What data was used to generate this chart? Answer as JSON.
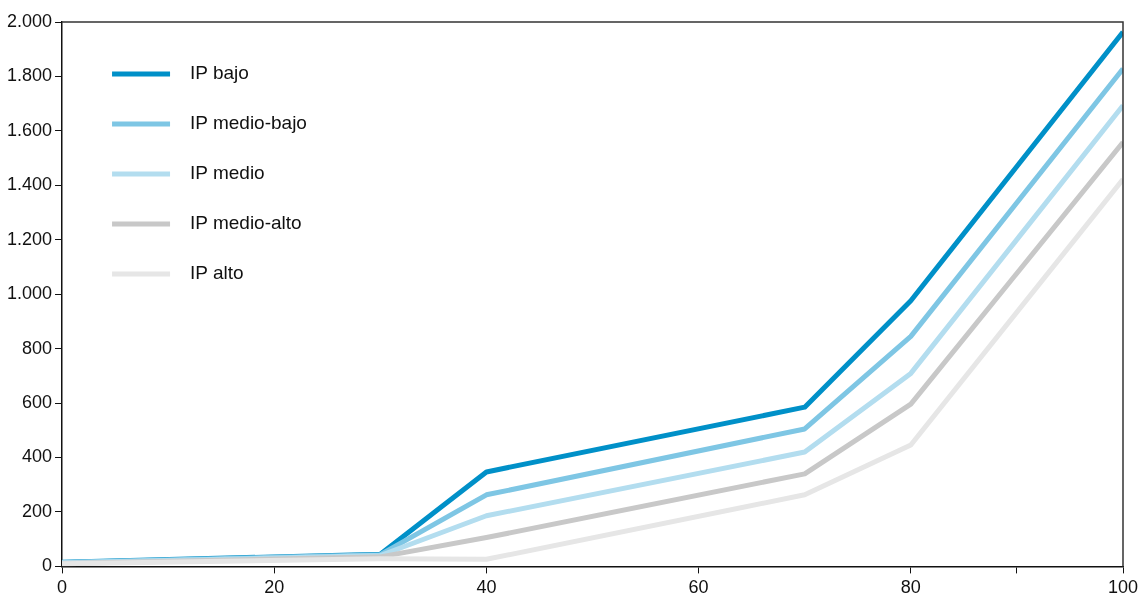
{
  "chart_data": {
    "type": "line",
    "x": [
      0,
      30,
      40,
      70,
      80,
      100
    ],
    "series": [
      {
        "name": "IP bajo",
        "color": "#0090c8",
        "values": [
          15,
          45,
          347,
          585,
          976,
          1963
        ]
      },
      {
        "name": "IP medio-bajo",
        "color": "#7ec6e4",
        "values": [
          14,
          43,
          263,
          505,
          845,
          1828
        ]
      },
      {
        "name": "IP medio",
        "color": "#b3ddef",
        "values": [
          13,
          40,
          186,
          420,
          709,
          1693
        ]
      },
      {
        "name": "IP medio-alto",
        "color": "#c8c8c8",
        "values": [
          11,
          35,
          106,
          340,
          596,
          1558
        ]
      },
      {
        "name": "IP alto",
        "color": "#e6e6e6",
        "values": [
          10,
          28,
          26,
          263,
          446,
          1422
        ]
      }
    ],
    "xlim": [
      0,
      100
    ],
    "xticks": [
      0,
      20,
      40,
      60,
      80,
      {
        "value": 90,
        "label": null
      },
      100
    ],
    "ylim": [
      0,
      2000
    ],
    "yticks": [
      0,
      200,
      400,
      600,
      800,
      {
        "value": 1000,
        "label": "1.000"
      },
      {
        "value": 1200,
        "label": "1.200"
      },
      {
        "value": 1400,
        "label": "1.400"
      },
      {
        "value": 1600,
        "label": "1.600"
      },
      {
        "value": 1800,
        "label": "1.800"
      },
      {
        "value": 2000,
        "label": "2.000"
      }
    ],
    "grid": false,
    "legend": "top left",
    "marker": "none",
    "line_style": "solid"
  }
}
